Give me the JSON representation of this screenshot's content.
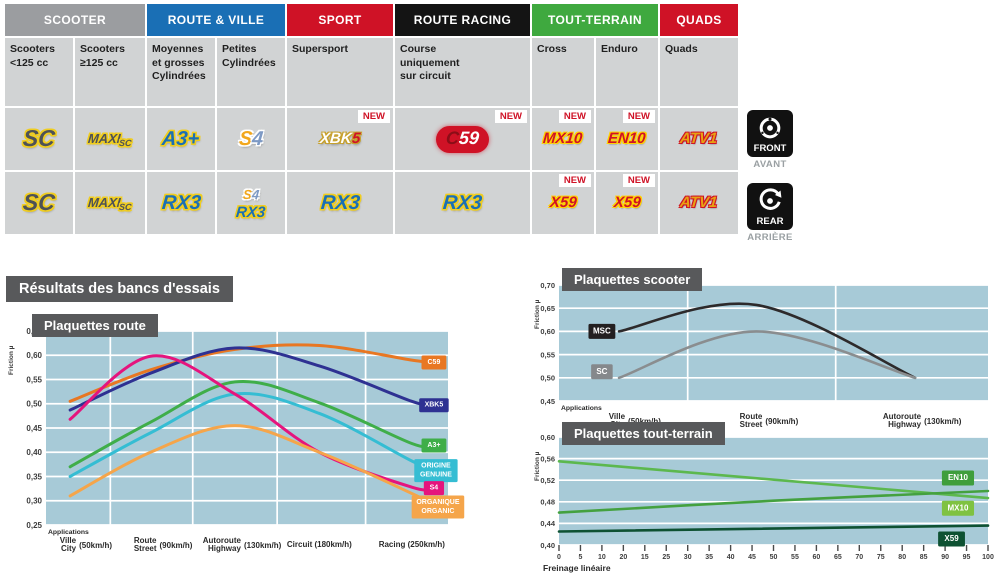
{
  "colors": {
    "plot_bg": "#a7cad7",
    "panel_gray": "#58595b",
    "cell_gray": "#d1d3d4",
    "new_red": "#cf1226"
  },
  "results_title": "Résultats des bancs d'essais",
  "side_icons": {
    "front": {
      "label": "FRONT",
      "sub": "AVANT"
    },
    "rear": {
      "label": "REAR",
      "sub": "ARRIÈRE"
    }
  },
  "table": {
    "new_label": "NEW",
    "groups": [
      {
        "label": "SCOOTER",
        "bg": "#9b9da0",
        "span": 2
      },
      {
        "label": "ROUTE & VILLE",
        "bg": "#1a6fb5",
        "span": 2
      },
      {
        "label": "SPORT",
        "bg": "#cf1226",
        "span": 1
      },
      {
        "label": "ROUTE RACING",
        "bg": "#141414",
        "span": 1
      },
      {
        "label": "TOUT-TERRAIN",
        "bg": "#3fa93f",
        "span": 2
      },
      {
        "label": "QUADS",
        "bg": "#cf1226",
        "span": 1
      }
    ],
    "columns": [
      {
        "sub": [
          "Scooters",
          "<125 cc"
        ],
        "row1": {
          "new": false,
          "parts": [
            {
              "text": "SC",
              "cls": "lg-dark lg-xl"
            }
          ]
        },
        "row2": {
          "new": false,
          "parts": [
            {
              "text": "SC",
              "cls": "lg-dark lg-xl"
            }
          ]
        }
      },
      {
        "sub": [
          "Scooters",
          "≥125 cc"
        ],
        "row1": {
          "new": false,
          "parts": [
            {
              "text": "MAXI",
              "cls": "lg-dark lg-maxi"
            },
            {
              "text": "SC",
              "cls": "lg-dark lg-maxisub"
            }
          ]
        },
        "row2": {
          "new": false,
          "parts": [
            {
              "text": "MAXI",
              "cls": "lg-dark lg-maxi"
            },
            {
              "text": "SC",
              "cls": "lg-dark lg-maxisub"
            }
          ]
        }
      },
      {
        "sub": [
          "Moyennes",
          "et grosses",
          "Cylindrées"
        ],
        "row1": {
          "new": false,
          "parts": [
            {
              "text": "A3+",
              "cls": "lg-blue lg-lg"
            }
          ]
        },
        "row2": {
          "new": false,
          "parts": [
            {
              "text": "RX3",
              "cls": "lg-blue lg-lg"
            }
          ]
        }
      },
      {
        "sub": [
          "Petites",
          "Cylindrées"
        ],
        "row1": {
          "new": false,
          "parts": [
            {
              "text": "S",
              "cls": "lg-s lg-lg"
            },
            {
              "text": "4",
              "cls": "lg-4 lg-lg"
            }
          ]
        },
        "row2": {
          "new": false,
          "parts": [
            {
              "text": "S",
              "cls": "lg-s lg-sm"
            },
            {
              "text": "4",
              "cls": "lg-4 lg-sm"
            },
            {
              "text": "RX3",
              "cls": "lg-blue lg-md lg-block"
            }
          ]
        }
      },
      {
        "sub": [
          "Supersport"
        ],
        "row1": {
          "new": true,
          "parts": [
            {
              "text": "XBK",
              "cls": "lg-xbk lg-md"
            },
            {
              "text": "5",
              "cls": "lg-5 lg-md"
            }
          ]
        },
        "row2": {
          "new": false,
          "parts": [
            {
              "text": "RX3",
              "cls": "lg-blue lg-lg"
            }
          ]
        }
      },
      {
        "sub": [
          "Course",
          "uniquement",
          "sur circuit"
        ],
        "row1": {
          "new": true,
          "pill": true,
          "parts": [
            {
              "text": "C",
              "cls": "c59-c"
            },
            {
              "text": "59",
              "cls": "c59-59"
            }
          ]
        },
        "row2": {
          "new": false,
          "parts": [
            {
              "text": "RX3",
              "cls": "lg-blue lg-lg"
            }
          ]
        }
      },
      {
        "sub": [
          "Cross"
        ],
        "row1": {
          "new": true,
          "parts": [
            {
              "text": "MX10",
              "cls": "lg-redy lg-md"
            }
          ]
        },
        "row2": {
          "new": true,
          "parts": [
            {
              "text": "X59",
              "cls": "lg-redy lg-md"
            }
          ]
        }
      },
      {
        "sub": [
          "Enduro"
        ],
        "row1": {
          "new": true,
          "parts": [
            {
              "text": "EN10",
              "cls": "lg-redy lg-md"
            }
          ]
        },
        "row2": {
          "new": true,
          "parts": [
            {
              "text": "X59",
              "cls": "lg-redy lg-md"
            }
          ]
        }
      },
      {
        "sub": [
          "Quads"
        ],
        "row1": {
          "new": false,
          "parts": [
            {
              "text": "ATV1",
              "cls": "lg-atv lg-md"
            }
          ]
        },
        "row2": {
          "new": false,
          "parts": [
            {
              "text": "ATV1",
              "cls": "lg-atv lg-md"
            }
          ]
        }
      }
    ]
  },
  "chart_data": [
    {
      "id": "route",
      "type": "line",
      "title": "Plaquettes route",
      "ylabel": "Friction µ",
      "corner_label": "Applications",
      "ylim": [
        0.25,
        0.65
      ],
      "ystep": 0.05,
      "grid": true,
      "legend_position": "right-badges",
      "categories": [
        {
          "fr": "Ville",
          "en": "City",
          "speed": "(50km/h)",
          "frac": 0.06
        },
        {
          "fr": "Route",
          "en": "Street",
          "speed": "(90km/h)",
          "frac": 0.26
        },
        {
          "fr": "Autoroute",
          "en": "Highway",
          "speed": "(130km/h)",
          "frac": 0.47
        },
        {
          "fr": "Circuit",
          "en": "",
          "speed": "(180km/h)",
          "frac": 0.68
        },
        {
          "fr": "Racing",
          "en": "",
          "speed": "(250km/h)",
          "frac": 0.91
        }
      ],
      "extend_to_badge": true,
      "series": [
        {
          "name": "C59",
          "color": "#e87722",
          "values": [
            0.505,
            0.57,
            0.612,
            0.62,
            0.59
          ],
          "badge": {
            "lines": [
              "C59"
            ],
            "bg": "#e87722",
            "frac": 0.965,
            "y": 0.585
          }
        },
        {
          "name": "XBK5",
          "color": "#2e3192",
          "values": [
            0.487,
            0.563,
            0.615,
            0.578,
            0.505
          ],
          "badge": {
            "lines": [
              "XBK5"
            ],
            "bg": "#2e3192",
            "frac": 0.965,
            "y": 0.497
          }
        },
        {
          "name": "A3+",
          "color": "#3fae49",
          "values": [
            0.37,
            0.462,
            0.545,
            0.502,
            0.418
          ],
          "badge": {
            "lines": [
              "A3+"
            ],
            "bg": "#3fae49",
            "frac": 0.965,
            "y": 0.414
          }
        },
        {
          "name": "ORIGINE GENUINE",
          "color": "#35bdd3",
          "values": [
            0.35,
            0.44,
            0.52,
            0.48,
            0.382
          ],
          "badge": {
            "lines": [
              "ORIGINE",
              "GENUINE"
            ],
            "bg": "#35bdd3",
            "frac": 0.97,
            "y": 0.362
          }
        },
        {
          "name": "S4",
          "color": "#e5147d",
          "values": [
            0.468,
            0.598,
            0.52,
            0.4,
            0.328
          ],
          "badge": {
            "lines": [
              "S4"
            ],
            "bg": "#e5147d",
            "frac": 0.965,
            "y": 0.326
          }
        },
        {
          "name": "ORGANIQUE ORGANIC",
          "color": "#f5a54a",
          "values": [
            0.31,
            0.4,
            0.455,
            0.4,
            0.315
          ],
          "badge": {
            "lines": [
              "ORGANIQUE",
              "ORGANIC"
            ],
            "bg": "#f5a54a",
            "frac": 0.975,
            "y": 0.287
          }
        }
      ]
    },
    {
      "id": "scooter",
      "type": "line",
      "title": "Plaquettes scooter",
      "ylabel": "Friction µ",
      "corner_label": "Applications",
      "ylim": [
        0.45,
        0.7
      ],
      "ystep": 0.05,
      "grid": true,
      "legend_position": "left-badges",
      "categories": [
        {
          "fr": "Ville",
          "en": "City",
          "speed": "(50km/h)",
          "frac": 0.14
        },
        {
          "fr": "Route",
          "en": "Street",
          "speed": "(90km/h)",
          "frac": 0.46
        },
        {
          "fr": "Autoroute",
          "en": "Highway",
          "speed": "(130km/h)",
          "frac": 0.83
        }
      ],
      "series": [
        {
          "name": "MSC",
          "color": "#2d2a2b",
          "values": [
            0.6,
            0.657,
            0.5
          ],
          "badge": {
            "lines": [
              "MSC"
            ],
            "bg": "#231f20",
            "frac": 0.1,
            "y": 0.6
          }
        },
        {
          "name": "SC",
          "color": "#8a8d8f",
          "values": [
            0.5,
            0.6,
            0.5
          ],
          "badge": {
            "lines": [
              "SC"
            ],
            "bg": "#85888b",
            "frac": 0.1,
            "y": 0.513
          }
        }
      ]
    },
    {
      "id": "terrain",
      "type": "line",
      "title": "Plaquettes tout-terrain",
      "ylabel": "Friction µ",
      "xlabel": "Freinage linéaire",
      "ylim": [
        0.4,
        0.6
      ],
      "ystep": 0.04,
      "xlim": [
        0,
        100
      ],
      "grid": true,
      "legend_position": "right-badges",
      "xticks": [
        "0",
        "5",
        "10",
        "20",
        "15",
        "25",
        "30",
        "35",
        "40",
        "45",
        "50",
        "55",
        "60",
        "65",
        "70",
        "75",
        "80",
        "85",
        "90",
        "95",
        "100"
      ],
      "series": [
        {
          "name": "EN10",
          "color": "#5cb84e",
          "points": [
            [
              0,
              0.555
            ],
            [
              100,
              0.487
            ]
          ],
          "badge": {
            "lines": [
              "EN10"
            ],
            "bg": "#3f9e3c",
            "frac": 0.93,
            "y": 0.524
          }
        },
        {
          "name": "MX10",
          "color": "#44a13f",
          "points": [
            [
              0,
              0.46
            ],
            [
              50,
              0.482
            ],
            [
              100,
              0.5
            ]
          ],
          "badge": {
            "lines": [
              "MX10"
            ],
            "bg": "#7fc241",
            "frac": 0.93,
            "y": 0.468
          }
        },
        {
          "name": "X59",
          "color": "#0e5132",
          "points": [
            [
              0,
              0.425
            ],
            [
              100,
              0.436
            ]
          ],
          "badge": {
            "lines": [
              "X59"
            ],
            "bg": "#0e5132",
            "frac": 0.915,
            "y": 0.411
          }
        }
      ]
    }
  ]
}
